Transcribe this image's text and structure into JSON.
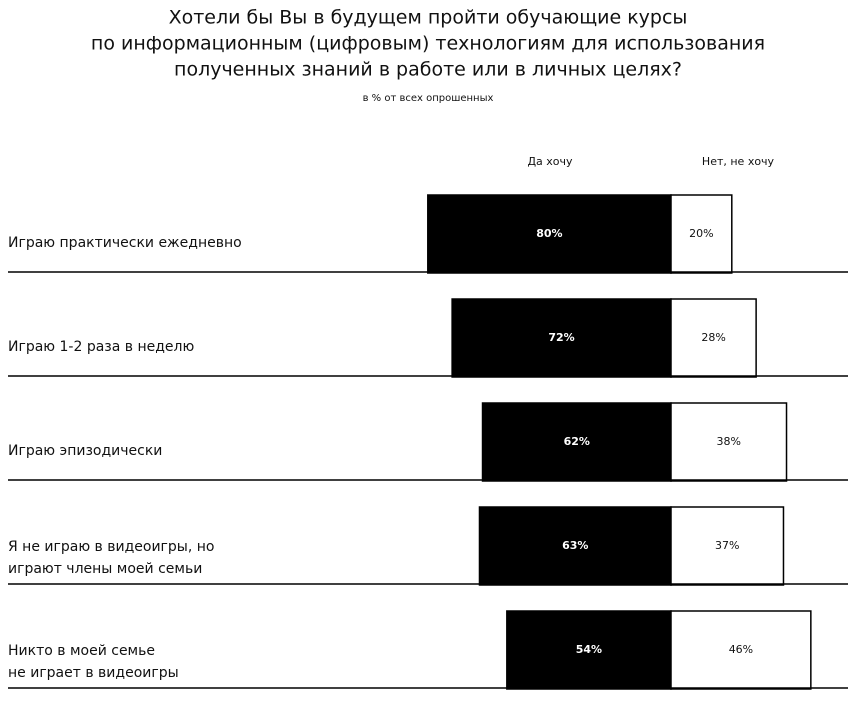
{
  "chart_data": {
    "type": "diverging-bar",
    "title": [
      "Хотели бы Вы в будущем пройти обучающие курсы",
      "по информационным (цифровым) технологиям для использования",
      "полученных знаний в работе или в личных целях?"
    ],
    "subtitle": "в % от всех опрошенных",
    "categories": [
      [
        "Играю практически ежедневно"
      ],
      [
        "Играю 1-2 раза в неделю"
      ],
      [
        "Играю эпизодически"
      ],
      [
        "Я не играю в видеоигры, но",
        "играют члены моей семьи"
      ],
      [
        "Никто в моей семье",
        "не играет в видеоигры"
      ]
    ],
    "series": [
      {
        "name": "Да хочу",
        "color": "#000000",
        "values": [
          80,
          72,
          62,
          63,
          54
        ],
        "value_labels": [
          "80%",
          "72%",
          "62%",
          "63%",
          "54%"
        ]
      },
      {
        "name": "Нет, не хочу",
        "color": "#ffffff",
        "values": [
          20,
          28,
          38,
          37,
          46
        ],
        "value_labels": [
          "20%",
          "28%",
          "38%",
          "37%",
          "46%"
        ]
      }
    ]
  }
}
